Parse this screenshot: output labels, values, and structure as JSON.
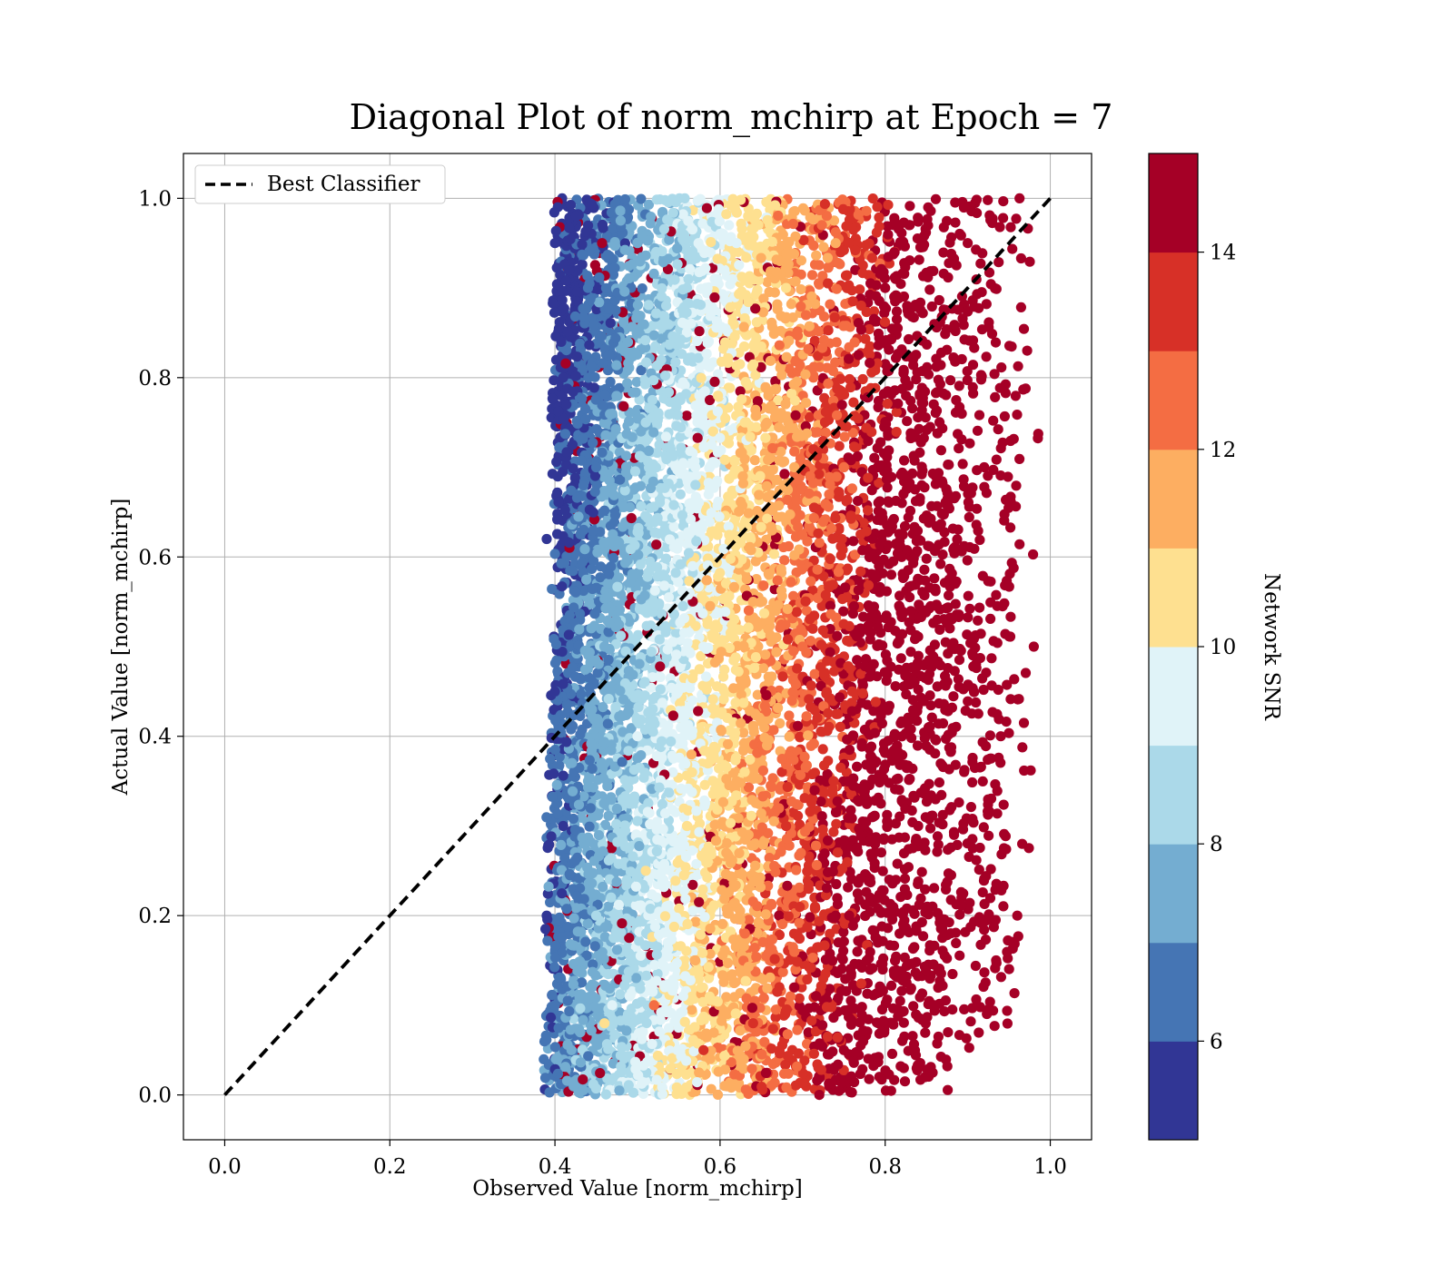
{
  "chart_data": {
    "type": "scatter",
    "title": "Diagonal Plot of norm_mchirp at Epoch = 7",
    "xlabel": "Observed Value [norm_mchirp]",
    "ylabel": "Actual Value [norm_mchirp]",
    "xlim": [
      -0.05,
      1.05
    ],
    "ylim": [
      -0.05,
      1.05
    ],
    "x_ticks": [
      "0.0",
      "0.2",
      "0.4",
      "0.6",
      "0.8",
      "1.0"
    ],
    "y_ticks": [
      "0.0",
      "0.2",
      "0.4",
      "0.6",
      "0.8",
      "1.0"
    ],
    "grid": true,
    "legend": {
      "position": "top-left",
      "entries": [
        "Best Classifier"
      ]
    },
    "reference_line": {
      "name": "Best Classifier",
      "x": [
        0.0,
        1.0
      ],
      "y": [
        0.0,
        1.0
      ],
      "style": "dashed",
      "color": "#000000"
    },
    "colorbar": {
      "label": "Network SNR",
      "range": [
        5,
        15
      ],
      "tick_labels": [
        "6",
        "8",
        "10",
        "12",
        "14"
      ],
      "tick_values": [
        6,
        8,
        10,
        12,
        14
      ],
      "colors": [
        "#313695",
        "#4575b4",
        "#74add1",
        "#abd9e9",
        "#e0f3f8",
        "#fee090",
        "#fdae61",
        "#f46d43",
        "#d73027",
        "#a50026"
      ]
    },
    "series": [
      {
        "description_of_distribution": "dense scatter cloud: observed values 0.37-1.0 across actual values 0.0-1.0; colour (SNR) rises from ~5 at observed 0.4 to >14 above observed 0.8",
        "points": [
          [
            0.4,
            0.95,
            5.2
          ],
          [
            0.41,
            0.8,
            5.5
          ],
          [
            0.39,
            0.62,
            5.1
          ],
          [
            0.4,
            0.45,
            5.8
          ],
          [
            0.41,
            0.3,
            5.3
          ],
          [
            0.39,
            0.2,
            5.0
          ],
          [
            0.4,
            0.1,
            6.0
          ],
          [
            0.42,
            0.05,
            7.5
          ],
          [
            0.44,
            0.9,
            6.2
          ],
          [
            0.45,
            0.7,
            6.8
          ],
          [
            0.46,
            0.5,
            7.2
          ],
          [
            0.44,
            0.35,
            7.8
          ],
          [
            0.45,
            0.2,
            8.5
          ],
          [
            0.46,
            0.08,
            10.5
          ],
          [
            0.5,
            0.95,
            7.0
          ],
          [
            0.51,
            0.75,
            8.0
          ],
          [
            0.52,
            0.55,
            8.5
          ],
          [
            0.5,
            0.4,
            9.0
          ],
          [
            0.51,
            0.25,
            10.5
          ],
          [
            0.52,
            0.1,
            12.0
          ],
          [
            0.56,
            0.9,
            8.5
          ],
          [
            0.57,
            0.7,
            9.2
          ],
          [
            0.58,
            0.5,
            9.8
          ],
          [
            0.56,
            0.3,
            10.8
          ],
          [
            0.57,
            0.15,
            11.8
          ],
          [
            0.58,
            0.05,
            13.0
          ],
          [
            0.62,
            0.95,
            9.5
          ],
          [
            0.63,
            0.75,
            10.2
          ],
          [
            0.64,
            0.55,
            11.0
          ],
          [
            0.62,
            0.35,
            11.8
          ],
          [
            0.63,
            0.18,
            12.8
          ],
          [
            0.64,
            0.08,
            13.5
          ],
          [
            0.68,
            0.9,
            10.5
          ],
          [
            0.69,
            0.7,
            11.5
          ],
          [
            0.7,
            0.5,
            12.5
          ],
          [
            0.68,
            0.3,
            13.0
          ],
          [
            0.69,
            0.12,
            14.0
          ],
          [
            0.74,
            0.95,
            11.5
          ],
          [
            0.75,
            0.7,
            12.8
          ],
          [
            0.76,
            0.45,
            13.8
          ],
          [
            0.74,
            0.2,
            14.5
          ],
          [
            0.75,
            0.05,
            14.8
          ],
          [
            0.8,
            0.9,
            14.2
          ],
          [
            0.82,
            0.6,
            14.8
          ],
          [
            0.84,
            0.3,
            15.0
          ],
          [
            0.86,
            0.1,
            15.0
          ],
          [
            0.9,
            0.95,
            15.0
          ],
          [
            0.92,
            0.7,
            15.0
          ],
          [
            0.94,
            0.4,
            15.0
          ],
          [
            0.96,
            0.2,
            15.0
          ],
          [
            0.98,
            0.5,
            15.0
          ]
        ]
      }
    ]
  }
}
